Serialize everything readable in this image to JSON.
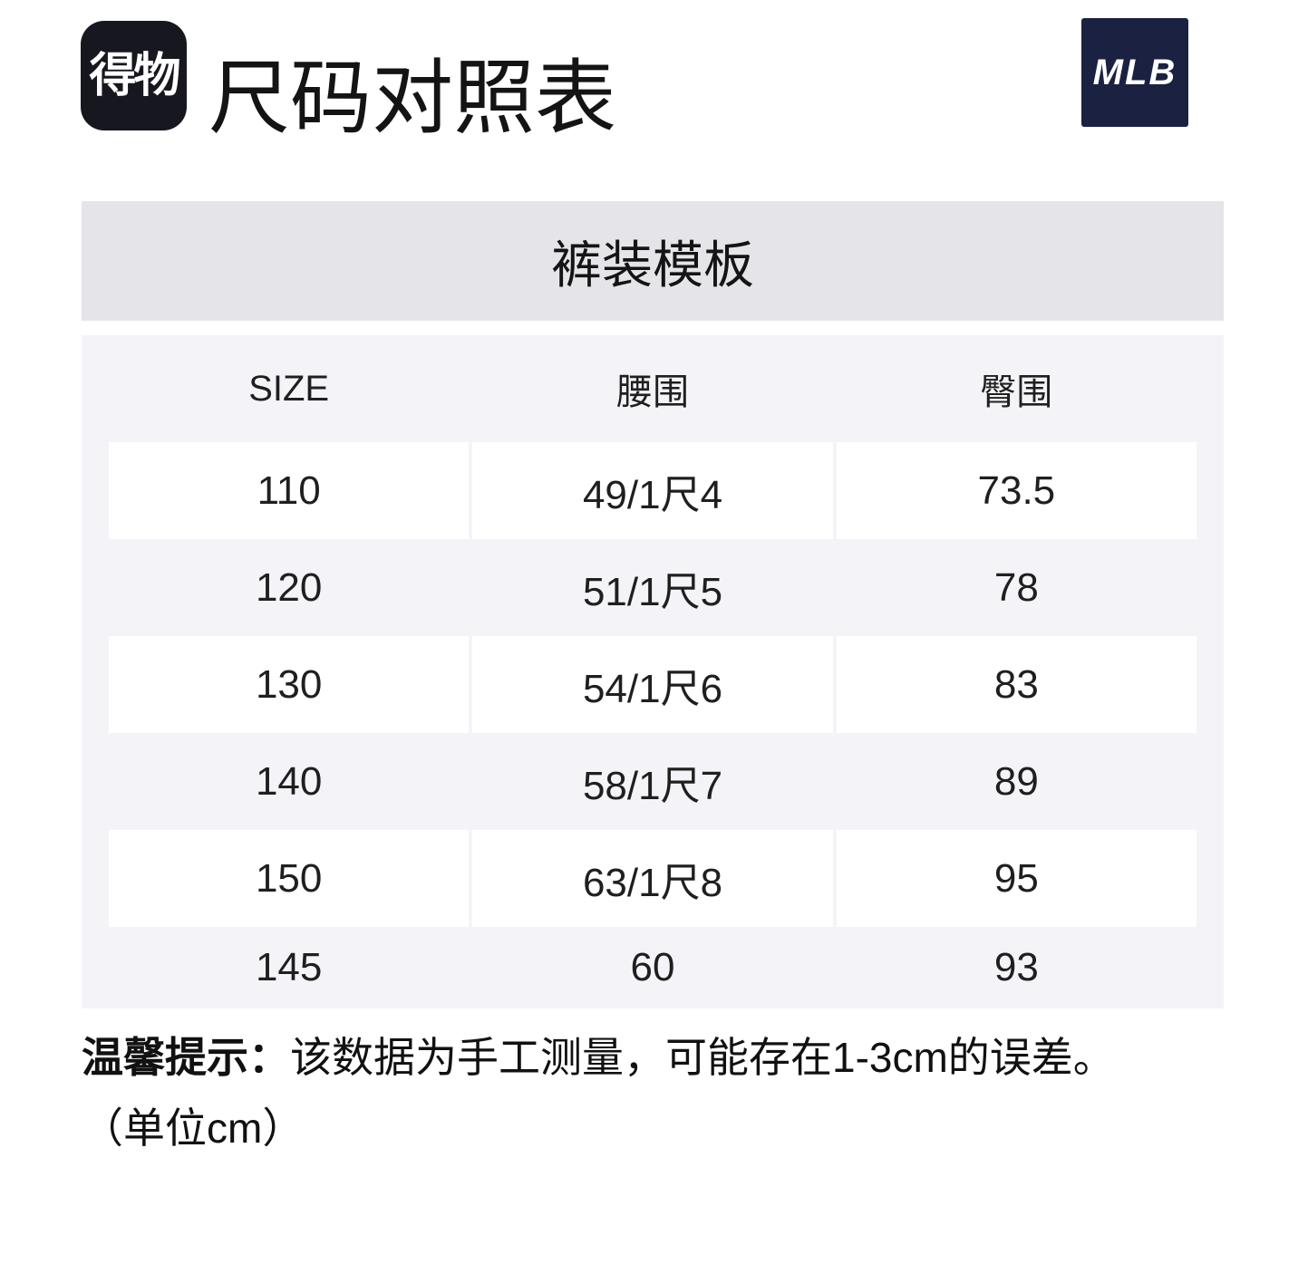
{
  "header": {
    "logo_text": "得物",
    "title": "尺码对照表",
    "brand": "MLB"
  },
  "banner": {
    "label": "裤装模板"
  },
  "table": {
    "columns": [
      "SIZE",
      "腰围",
      "臀围"
    ],
    "rows": [
      [
        "110",
        "49/1尺4",
        "73.5"
      ],
      [
        "120",
        "51/1尺5",
        "78"
      ],
      [
        "130",
        "54/1尺6",
        "83"
      ],
      [
        "140",
        "58/1尺7",
        "89"
      ],
      [
        "150",
        "63/1尺8",
        "95"
      ],
      [
        "145",
        "60",
        "93"
      ]
    ]
  },
  "note": {
    "prefix": "温馨提示：",
    "body": "该数据为手工测量，可能存在1-3cm的误差。",
    "unit": "（单位cm）"
  },
  "colors": {
    "logo_bg": "#17171f",
    "mlb_bg": "#1b2140",
    "banner_bg": "#e5e4e9",
    "table_bg": "#f4f4f8",
    "row_white": "#ffffff",
    "text": "#141414"
  }
}
